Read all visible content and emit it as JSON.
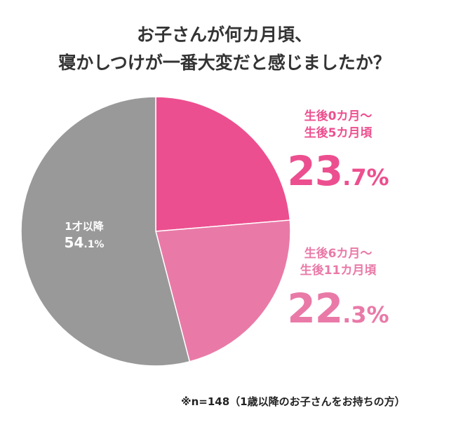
{
  "title_lines": [
    "お子さんが何カ月頃、",
    "寝かしつけが一番大変だと感じましたか？"
  ],
  "chart_data": {
    "type": "pie",
    "title": "お子さんが何カ月頃、寝かしつけが一番大変だと感じましたか？",
    "start": "top",
    "direction": "clockwise",
    "slices": [
      {
        "label_lines": [
          "生後0カ月〜",
          "生後5カ月頃"
        ],
        "value": 23.7,
        "int": "23",
        "dec": ".7%",
        "color": "#ec4f8f"
      },
      {
        "label_lines": [
          "生後6カ月〜",
          "生後11カ月頃"
        ],
        "value": 22.3,
        "int": "22",
        "dec": ".3%",
        "color": "#e97aa8"
      },
      {
        "label_lines": [
          "1才以降"
        ],
        "value": 54.1,
        "int": "54",
        "dec": ".1%",
        "color": "#999999"
      }
    ]
  },
  "note": "※n=148（1歳以降のお子さんをお持ちの方）"
}
